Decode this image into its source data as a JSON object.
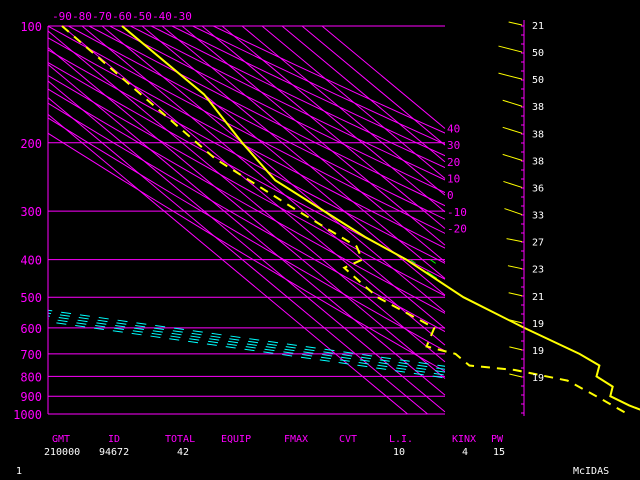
{
  "chart_data": {
    "type": "line",
    "pressure_ticks": [
      100,
      200,
      300,
      400,
      500,
      600,
      700,
      800,
      900,
      1000
    ],
    "top_temp_ticks": [
      -90,
      -80,
      -70,
      -60,
      -50,
      -40,
      -30
    ],
    "isotherm_labels": [
      -20,
      -10,
      0,
      10,
      20,
      30,
      40
    ],
    "temperature_profile": [
      [
        100,
        -60
      ],
      [
        150,
        -60
      ],
      [
        200,
        -70
      ],
      [
        250,
        -76
      ],
      [
        300,
        -70
      ],
      [
        350,
        -65
      ],
      [
        400,
        -58
      ],
      [
        500,
        -52
      ],
      [
        600,
        -40
      ],
      [
        700,
        -28
      ],
      [
        750,
        -25
      ],
      [
        800,
        -33
      ],
      [
        850,
        -31
      ],
      [
        900,
        -38
      ],
      [
        950,
        -34
      ],
      [
        1000,
        -28
      ]
    ],
    "dewpoint_profile": [
      [
        100,
        -90
      ],
      [
        220,
        -93
      ],
      [
        300,
        -83
      ],
      [
        370,
        -75
      ],
      [
        400,
        -80
      ],
      [
        420,
        -94
      ],
      [
        500,
        -95
      ],
      [
        600,
        -85
      ],
      [
        670,
        -100
      ],
      [
        700,
        -90
      ],
      [
        750,
        -90
      ],
      [
        770,
        -70
      ],
      [
        820,
        -50
      ],
      [
        900,
        -45
      ],
      [
        1000,
        -40
      ]
    ],
    "wind_speeds": [
      21,
      50,
      50,
      38,
      38,
      38,
      36,
      33,
      27,
      23,
      21,
      19,
      19,
      19
    ]
  },
  "footer": {
    "headers": [
      "GMT",
      "ID",
      "TOTAL",
      "EQUIP",
      "FMAX",
      "CVT",
      "L.I.",
      "KINX",
      "PW"
    ],
    "values": [
      "210000",
      "94672",
      "42",
      "",
      "",
      "",
      "10",
      "4",
      "15"
    ]
  },
  "corner_left": "1",
  "corner_right": "McIDAS",
  "colors": {
    "frame": "#ff00ff",
    "temperature": "#ffff00",
    "dewpoint": "#ffff00",
    "dry_adiabat": "#ff00ff",
    "moist_adiabat": "#00ffff",
    "mixing_ratio": "#00ff00",
    "wind": "#ffff00"
  }
}
